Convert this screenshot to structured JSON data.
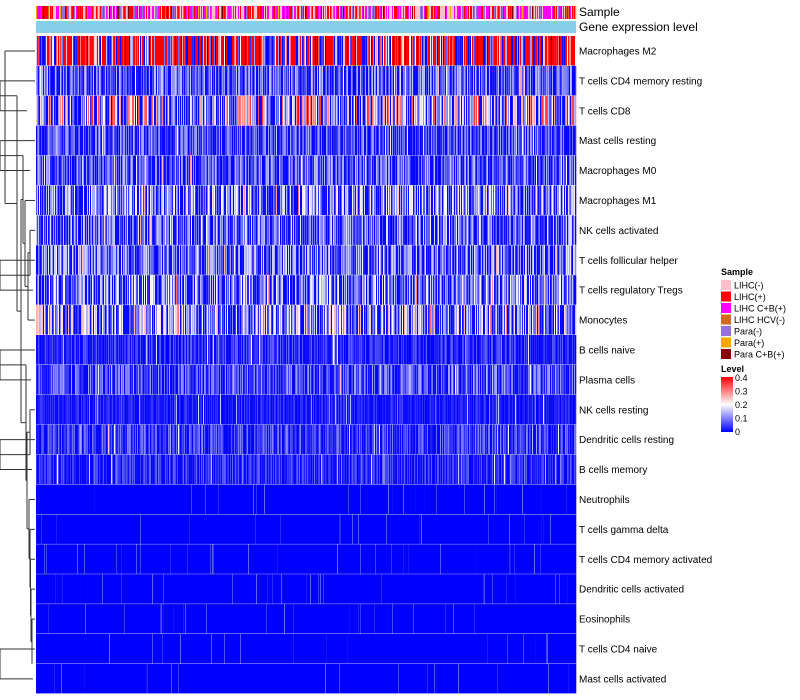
{
  "chart_data": {
    "type": "heatmap",
    "title": "",
    "annotation_rows": [
      "Sample",
      "Gene expression level"
    ],
    "rows": [
      "Macrophages M2",
      "T cells CD4 memory resting",
      "T cells CD8",
      "Mast cells resting",
      "Macrophages M0",
      "Macrophages M1",
      "NK cells activated",
      "T cells follicular helper",
      "T cells regulatory  Tregs",
      "Monocytes",
      "B cells naive",
      "Plasma cells",
      "NK cells resting",
      "Dendritic cells resting",
      "B cells memory",
      "Neutrophils",
      "T cells gamma delta",
      "T cells CD4 memory activated",
      "Dendritic cells activated",
      "Eosinophils",
      "T cells CD4 naive",
      "Mast cells activated"
    ],
    "row_mean_levels": [
      0.3,
      0.06,
      0.14,
      0.05,
      0.06,
      0.09,
      0.07,
      0.07,
      0.08,
      0.1,
      0.03,
      0.05,
      0.02,
      0.04,
      0.03,
      0.005,
      0.005,
      0.004,
      0.004,
      0.003,
      0.003,
      0.003
    ],
    "legend_sample": {
      "title": "Sample",
      "entries": [
        {
          "label": "LIHC(-)",
          "color": "#ffc0cb"
        },
        {
          "label": "LIHC(+)",
          "color": "#ff0000"
        },
        {
          "label": "LIHC C+B(+)",
          "color": "#ff00ff"
        },
        {
          "label": "LIHC HCV(-)",
          "color": "#d2691e"
        },
        {
          "label": "Para(-)",
          "color": "#9370db"
        },
        {
          "label": "Para(+)",
          "color": "#ffa500"
        },
        {
          "label": "Para C+B(+)",
          "color": "#8b0000"
        }
      ]
    },
    "legend_level": {
      "title": "Level",
      "range": [
        0,
        0.4
      ],
      "ticks": [
        "0.4",
        "0.3",
        "0.2",
        "0.1",
        "0"
      ],
      "colors": [
        "#0000ff",
        "#ffffff",
        "#ff0000"
      ]
    },
    "gene_expression_color": "#87ceeb",
    "n_samples": 540
  }
}
